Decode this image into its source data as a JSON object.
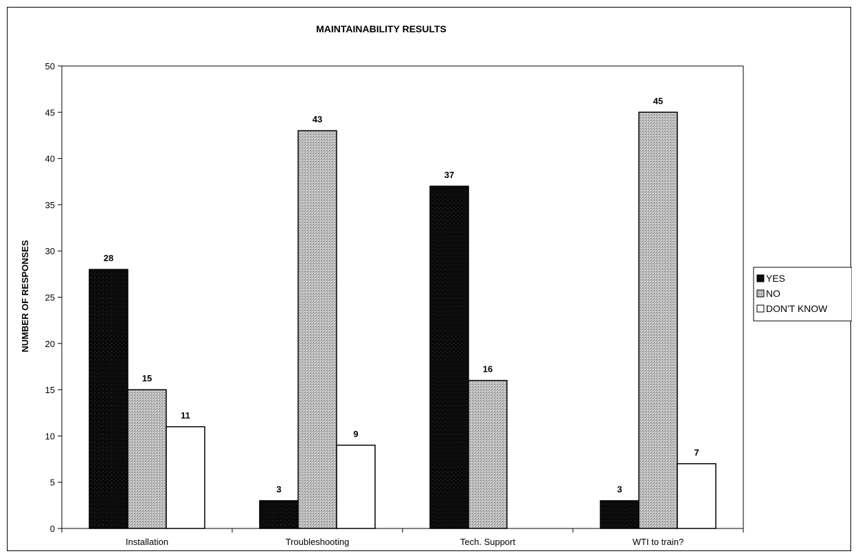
{
  "chart_data": {
    "type": "bar",
    "title": "MAINTAINABILITY RESULTS",
    "xlabel": "",
    "ylabel": "NUMBER OF RESPONSES",
    "categories": [
      "Installation",
      "Troubleshooting",
      "Tech. Support",
      "WTI to train?"
    ],
    "series": [
      {
        "name": "YES",
        "values": [
          28,
          3,
          37,
          3
        ],
        "color": "#0a0a0a",
        "fill": "dark-speckled"
      },
      {
        "name": "NO",
        "values": [
          15,
          43,
          16,
          45
        ],
        "color": "#bdbdbd",
        "fill": "gray-speckled"
      },
      {
        "name": "DON'T KNOW",
        "values": [
          11,
          9,
          null,
          7
        ],
        "color": "#ffffff",
        "fill": "white"
      }
    ],
    "data_labels": [
      [
        "28",
        "3",
        "37",
        "3"
      ],
      [
        "15",
        "43",
        "16",
        "45"
      ],
      [
        "11",
        "9",
        "",
        "7"
      ]
    ],
    "ylim": [
      0,
      50
    ],
    "yticks": [
      "0",
      "5",
      "10",
      "15",
      "20",
      "25",
      "30",
      "35",
      "40",
      "45",
      "50"
    ],
    "grid": false,
    "legend_position": "right"
  }
}
